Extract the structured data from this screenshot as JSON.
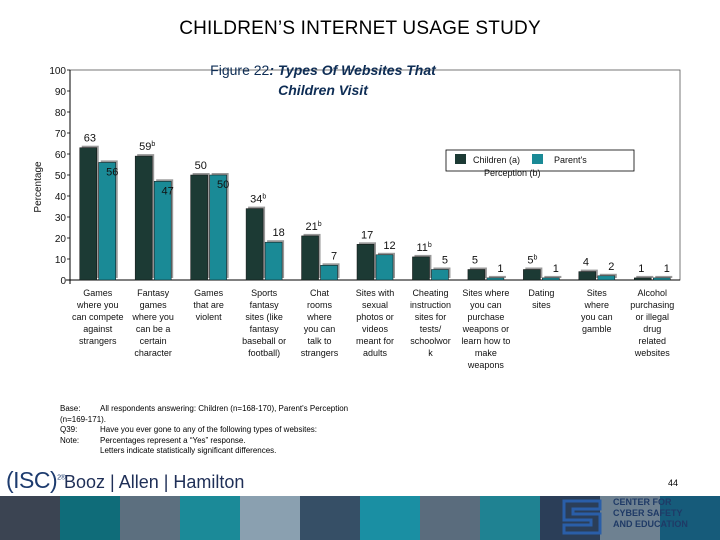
{
  "slide": {
    "title": "CHILDREN’S INTERNET USAGE STUDY",
    "page_number": "44"
  },
  "chart_data": {
    "type": "bar",
    "title_prefix": "Figure 22",
    "title_line1": ": Types Of Websites That",
    "title_line2": "Children Visit",
    "ylabel": "Percentage",
    "ylim": [
      0,
      100
    ],
    "yticks": [
      "0",
      "10",
      "20",
      "30",
      "40",
      "50",
      "60",
      "70",
      "80",
      "90",
      "100"
    ],
    "legend_position": "top-right",
    "categories": [
      [
        "Games",
        "where you",
        "can compete",
        "against",
        "strangers"
      ],
      [
        "Fantasy",
        "games",
        "where you",
        "can be a",
        "certain",
        "character"
      ],
      [
        "Games",
        "that are",
        "violent"
      ],
      [
        "Sports",
        "fantasy",
        "sites (like",
        "fantasy",
        "baseball or",
        "football)"
      ],
      [
        "Chat",
        "rooms",
        "where",
        "you can",
        "talk to",
        "strangers"
      ],
      [
        "Sites with",
        "sexual",
        "photos or",
        "videos",
        "meant for",
        "adults"
      ],
      [
        "Cheating",
        "instruction",
        "sites for",
        "tests/",
        "schoolwor",
        "k"
      ],
      [
        "Sites where",
        "you can",
        "purchase",
        "weapons or",
        "learn how to",
        "make",
        "weapons"
      ],
      [
        "Dating",
        "sites"
      ],
      [
        "Sites",
        "where",
        "you can",
        "gamble"
      ],
      [
        "Alcohol",
        "purchasing",
        "or illegal",
        "drug",
        "related",
        "websites"
      ]
    ],
    "series": [
      {
        "name": "Children (a)",
        "legend_label": "Children (a)",
        "color": "#1c3a34",
        "values": [
          63,
          59,
          50,
          34,
          21,
          17,
          11,
          5,
          5,
          4,
          1
        ],
        "value_labels": [
          "63",
          "59",
          "50",
          "34",
          "21",
          "17",
          "11",
          "5",
          "5",
          "4",
          "1"
        ],
        "sig_markers": [
          "",
          "b",
          "",
          "b",
          "b",
          "",
          "b",
          "",
          "b",
          "",
          ""
        ]
      },
      {
        "name": "Parent's Perception (b)",
        "legend_label": "Parent's",
        "legend_label_line2": "Perception (b)",
        "color": "#1a8a96",
        "values": [
          56,
          47,
          50,
          18,
          7,
          12,
          5,
          1,
          1,
          2,
          1
        ],
        "value_labels": [
          "56",
          "47",
          "50",
          "18",
          "7",
          "12",
          "5",
          "1",
          "1",
          "2",
          "1"
        ]
      }
    ]
  },
  "notes": [
    {
      "label": "Base:",
      "text": "All respondents answering: Children (n=168-170), Parent's Perception"
    },
    {
      "label": "",
      "text": "(n=169-171)."
    },
    {
      "label": "Q39:",
      "text": "Have you ever gone to any of the following types of websites:"
    },
    {
      "label": "Note:",
      "text": "Percentages represent a “Yes” response."
    },
    {
      "label": "",
      "text": "Letters indicate statistically significant differences."
    }
  ],
  "footer": {
    "isc_logo": "(ISC)",
    "isc_sup": "2®",
    "bah_logo": "Booz | Allen | Hamilton",
    "center_line1": "CENTER FOR",
    "center_line2": "CYBER SAFETY",
    "center_line3": "AND EDUCATION",
    "colors": [
      "#3b4452",
      "#0f6c79",
      "#5c6f7f",
      "#1b8a98",
      "#8aa0b0",
      "#364f66",
      "#1a8fa3",
      "#5a6c7d",
      "#1f8292",
      "#2b3e58",
      "#6e8191",
      "#165b7a"
    ]
  }
}
